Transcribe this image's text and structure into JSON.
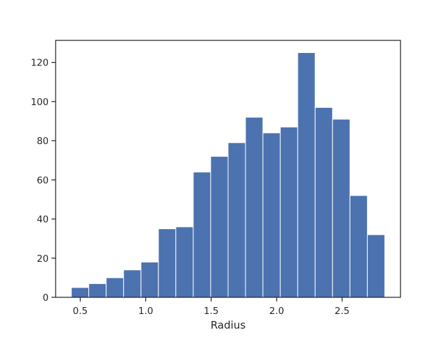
{
  "chart_data": {
    "type": "bar",
    "title": "",
    "xlabel": "Radius",
    "ylabel": "",
    "bin_edges": [
      0.432,
      0.565,
      0.698,
      0.831,
      0.964,
      1.097,
      1.23,
      1.363,
      1.496,
      1.629,
      1.762,
      1.895,
      2.028,
      2.161,
      2.294,
      2.427,
      2.56,
      2.693,
      2.826
    ],
    "values": [
      5,
      7,
      10,
      14,
      18,
      35,
      36,
      64,
      72,
      79,
      92,
      84,
      87,
      125,
      97,
      91,
      52,
      32
    ],
    "xlim": [
      0.312,
      2.946
    ],
    "ylim": [
      0,
      131.25
    ],
    "xticks": [
      0.5,
      1.0,
      1.5,
      2.0,
      2.5
    ],
    "xtick_labels": [
      "0.5",
      "1.0",
      "1.5",
      "2.0",
      "2.5"
    ],
    "yticks": [
      0,
      20,
      40,
      60,
      80,
      100,
      120
    ],
    "ytick_labels": [
      "0",
      "20",
      "40",
      "60",
      "80",
      "100",
      "120"
    ],
    "grid": false,
    "bar_color": "#4c72b0",
    "edge_color": "#ffffff",
    "axis_color": "#262626"
  }
}
